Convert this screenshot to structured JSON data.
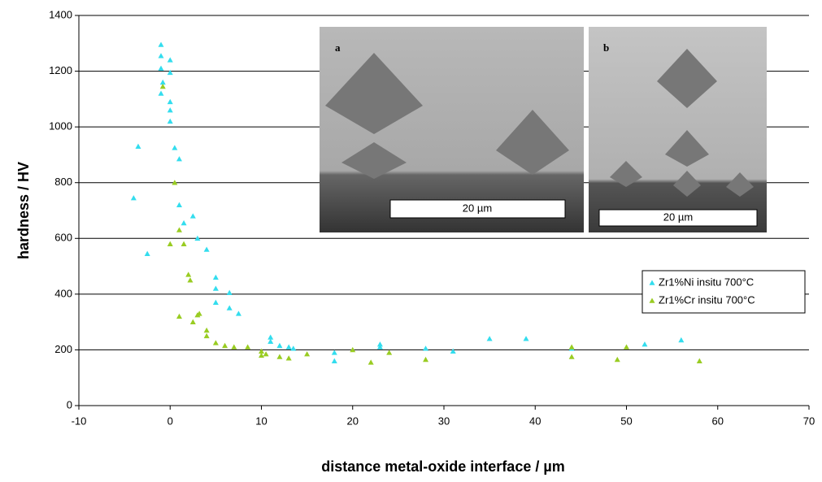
{
  "chart_data": {
    "type": "scatter",
    "x_label": "distance metal-oxide interface / µm",
    "y_label": "hardness / HV",
    "xlim": [
      -10,
      70
    ],
    "xticks": [
      -10,
      0,
      10,
      20,
      30,
      40,
      50,
      60,
      70
    ],
    "ylim": [
      0,
      1400
    ],
    "yticks": [
      0,
      200,
      400,
      600,
      800,
      1000,
      1200,
      1400
    ],
    "grid": true,
    "legend": "right",
    "series": [
      {
        "name": "Zr1%Ni insitu 700°C",
        "color": "#33ddee",
        "x": [
          -1,
          -1,
          -1,
          -1,
          -0.8,
          0,
          0,
          0,
          0,
          0,
          -3.5,
          -4,
          -2.5,
          0.5,
          1,
          1,
          1.5,
          2.5,
          3,
          4,
          5,
          5,
          5,
          6.5,
          6.5,
          7.5,
          11,
          11,
          12,
          13,
          13.5,
          18,
          18,
          23,
          23,
          28,
          31,
          35,
          39,
          44,
          52,
          56
        ],
        "values": [
          1295,
          1255,
          1210,
          1120,
          1160,
          1240,
          1195,
          1090,
          1060,
          1020,
          930,
          745,
          545,
          925,
          885,
          720,
          655,
          680,
          600,
          560,
          460,
          420,
          370,
          405,
          350,
          330,
          245,
          230,
          215,
          210,
          205,
          190,
          160,
          210,
          220,
          205,
          195,
          240,
          240,
          205,
          220,
          235
        ]
      },
      {
        "name": "Zr1%Cr insitu 700°C",
        "color": "#99cc22",
        "x": [
          -0.8,
          0.5,
          0,
          1,
          1.5,
          1,
          2,
          2.2,
          2.5,
          3,
          3.2,
          4,
          4,
          5,
          6,
          7,
          8.5,
          10,
          10,
          10.5,
          12,
          13,
          15,
          20,
          22,
          24,
          28,
          44,
          44,
          49,
          50,
          58
        ],
        "values": [
          1145,
          800,
          580,
          630,
          580,
          320,
          470,
          450,
          300,
          325,
          330,
          270,
          250,
          225,
          215,
          210,
          210,
          195,
          180,
          185,
          175,
          170,
          185,
          200,
          155,
          190,
          165,
          210,
          175,
          165,
          210,
          160
        ]
      }
    ],
    "insets": [
      {
        "label": "a",
        "scale": "20 µm"
      },
      {
        "label": "b",
        "scale": "20 µm"
      }
    ]
  }
}
